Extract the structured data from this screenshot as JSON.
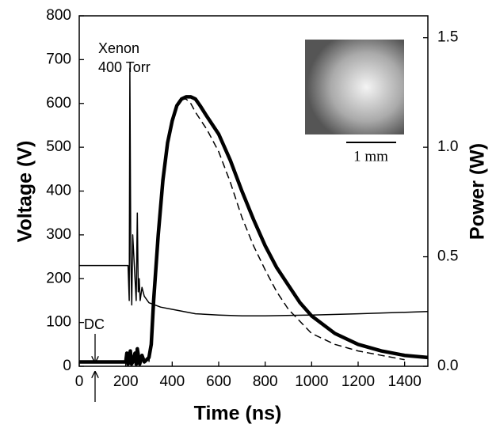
{
  "chart_data": {
    "type": "line",
    "x_label": "Time (ns)",
    "y_label": "Voltage (V)",
    "y2_label": "Power (W)",
    "annotations": [
      "Xenon",
      "400 Torr",
      "DC",
      "1 mm"
    ],
    "xlim": [
      0,
      1500
    ],
    "xticks": [
      0,
      200,
      400,
      600,
      800,
      1000,
      1200,
      1400
    ],
    "ylim": [
      0,
      800
    ],
    "yticks": [
      0,
      100,
      200,
      300,
      400,
      500,
      600,
      700,
      800
    ],
    "y2lim": [
      0,
      1.6
    ],
    "y2ticks": [
      {
        "value": 0,
        "label": "0.0"
      },
      0.5,
      {
        "value": 1,
        "label": "1.0"
      },
      1.5
    ],
    "series": [
      {
        "color": "#000000",
        "style": "solid",
        "width": 1.5,
        "x": [
          0,
          200,
          210,
          215,
          218,
          222,
          226,
          230,
          240,
          245,
          250,
          254,
          258,
          262,
          270,
          280,
          300,
          350,
          400,
          500,
          600,
          700,
          800,
          1000,
          1200,
          1500
        ],
        "values": [
          230,
          230,
          230,
          150,
          680,
          250,
          140,
          300,
          200,
          150,
          350,
          170,
          200,
          150,
          180,
          160,
          145,
          135,
          130,
          120,
          117,
          115,
          115,
          117,
          120,
          125
        ]
      },
      {
        "color": "#000000",
        "style": "solid",
        "width": 4.5,
        "axis": "y2",
        "x": [
          0,
          190,
          200,
          205,
          210,
          220,
          225,
          230,
          240,
          245,
          250,
          260,
          270,
          280,
          290,
          300,
          310,
          320,
          340,
          360,
          380,
          400,
          420,
          440,
          460,
          480,
          500,
          520,
          550,
          600,
          650,
          700,
          750,
          800,
          850,
          900,
          950,
          1000,
          1100,
          1200,
          1300,
          1400,
          1500
        ],
        "values": [
          0.02,
          0.02,
          0.02,
          0.06,
          0.01,
          0.07,
          0.01,
          0.02,
          0.06,
          0.01,
          0.08,
          0.01,
          0.05,
          0.02,
          0.03,
          0.04,
          0.1,
          0.3,
          0.6,
          0.85,
          1.02,
          1.12,
          1.19,
          1.22,
          1.23,
          1.23,
          1.22,
          1.19,
          1.14,
          1.06,
          0.94,
          0.8,
          0.67,
          0.55,
          0.45,
          0.37,
          0.29,
          0.23,
          0.15,
          0.1,
          0.07,
          0.05,
          0.04
        ]
      },
      {
        "color": "#000000",
        "style": "dashed",
        "width": 1.5,
        "axis": "y2",
        "x": [
          300,
          320,
          340,
          360,
          380,
          400,
          420,
          440,
          460,
          480,
          500,
          550,
          600,
          650,
          700,
          750,
          800,
          850,
          900,
          1000,
          1100,
          1200,
          1300,
          1400
        ],
        "values": [
          0.02,
          0.25,
          0.55,
          0.82,
          1.0,
          1.12,
          1.19,
          1.22,
          1.22,
          1.2,
          1.16,
          1.08,
          0.98,
          0.84,
          0.68,
          0.55,
          0.44,
          0.34,
          0.26,
          0.15,
          0.1,
          0.07,
          0.05,
          0.03
        ]
      }
    ]
  }
}
